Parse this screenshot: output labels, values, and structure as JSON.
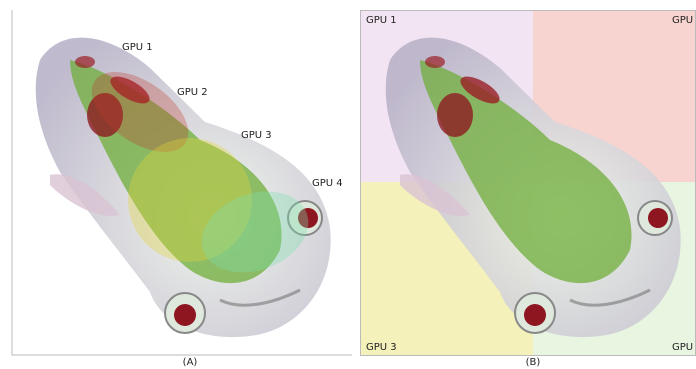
{
  "panel_a": {
    "labels": [
      "GPU 1",
      "GPU 2",
      "GPU 3",
      "GPU 4"
    ],
    "caption": "(A)"
  },
  "panel_b": {
    "labels": [
      "GPU 1",
      "GPU",
      "GPU 3",
      "GPU"
    ],
    "caption": "(B)"
  }
}
